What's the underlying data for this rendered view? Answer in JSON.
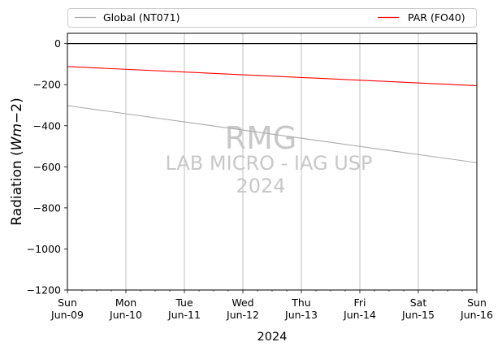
{
  "chart_data": {
    "type": "line",
    "xlabel": "2024",
    "ylabel_main": "Radiation (",
    "ylabel_math": "Wm",
    "ylabel_tail": "−2)",
    "ylim": [
      -1200,
      50
    ],
    "yticks": [
      0,
      -200,
      -400,
      -600,
      -800,
      -1000,
      -1200
    ],
    "ytick_labels": [
      "0",
      "−200",
      "−400",
      "−600",
      "−800",
      "−1000",
      "−1200"
    ],
    "xlim": [
      "2024-06-09",
      "2024-06-16"
    ],
    "x_ticks": [
      {
        "date": "2024-06-09",
        "day": "Sun",
        "date_label": "Jun-09"
      },
      {
        "date": "2024-06-10",
        "day": "Mon",
        "date_label": "Jun-10"
      },
      {
        "date": "2024-06-11",
        "day": "Tue",
        "date_label": "Jun-11"
      },
      {
        "date": "2024-06-12",
        "day": "Wed",
        "date_label": "Jun-12"
      },
      {
        "date": "2024-06-13",
        "day": "Thu",
        "date_label": "Jun-13"
      },
      {
        "date": "2024-06-14",
        "day": "Fri",
        "date_label": "Jun-14"
      },
      {
        "date": "2024-06-15",
        "day": "Sat",
        "date_label": "Jun-15"
      },
      {
        "date": "2024-06-16",
        "day": "Sun",
        "date_label": "Jun-16"
      }
    ],
    "grid_x": true,
    "grid_y": false,
    "zero_line": true,
    "legend_placement": "above-plot",
    "series": [
      {
        "name": "Global (NT071)",
        "color": "#aaaaaa",
        "x": [
          "2024-06-09",
          "2024-06-16"
        ],
        "y": [
          -302,
          -580
        ]
      },
      {
        "name": "PAR (FO40)",
        "color": "#ff0000",
        "x": [
          "2024-06-09",
          "2024-06-16"
        ],
        "y": [
          -112,
          -205
        ]
      }
    ],
    "watermark": [
      "RMG",
      "LAB MICRO - IAG USP",
      "2024"
    ]
  }
}
